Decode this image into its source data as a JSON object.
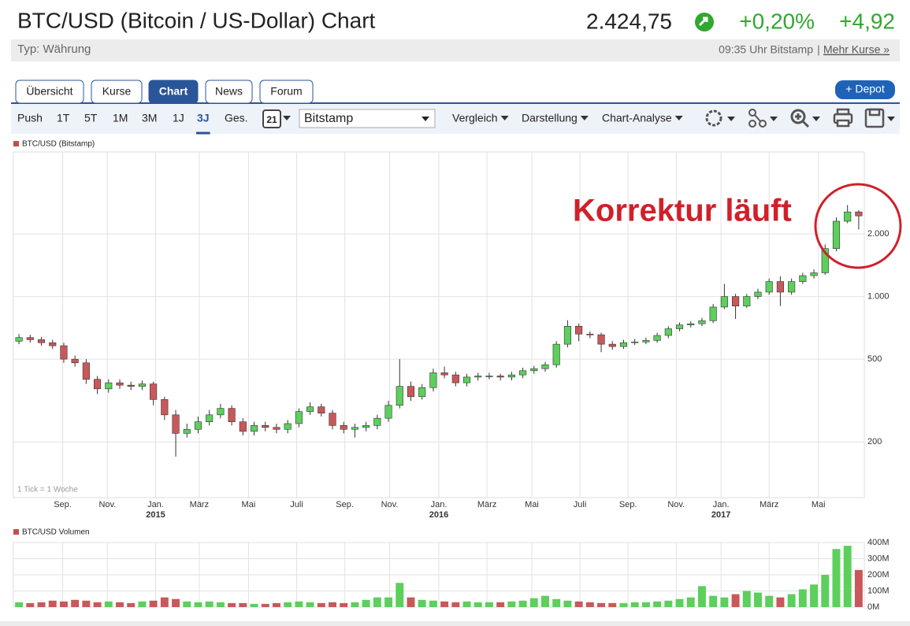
{
  "header": {
    "title": "BTC/USD (Bitcoin / US-Dollar) Chart",
    "price": "2.424,75",
    "change_pct": "+0,20%",
    "change_abs": "+4,92",
    "type": "Typ: Währung",
    "info": "09:35 Uhr Bitstamp",
    "separator": "|",
    "link": "Mehr Kurse »"
  },
  "tabs": [
    "Übersicht",
    "Kurse",
    "Chart",
    "News",
    "Forum"
  ],
  "active_tab": 2,
  "depot_button": "+ Depot",
  "toolbar": {
    "periods": [
      "Push",
      "1T",
      "5T",
      "1M",
      "3M",
      "1J",
      "3J",
      "Ges."
    ],
    "active_period": 6,
    "calendar_day": "21",
    "exchange": "Bitstamp",
    "menus": [
      "Vergleich",
      "Darstellung",
      "Chart-Analyse"
    ]
  },
  "chart_data": [
    {
      "type": "candlestick",
      "note": "1 Tick = 1 Woche",
      "annotation": "Korrektur läuft",
      "annotation_color": "#d0202a",
      "log_scale": true,
      "grid": true,
      "series": [
        {
          "name": "BTC/USD (Bitstamp)",
          "color": "#c0504d",
          "up_color": "#5ccf5c",
          "down_color": "#c9585a",
          "open": [
            610,
            635,
            620,
            600,
            580,
            500,
            480,
            400,
            360,
            385,
            375,
            370,
            380,
            320,
            270,
            220,
            230,
            250,
            270,
            290,
            250,
            225,
            240,
            235,
            230,
            245,
            280,
            295,
            275,
            240,
            230,
            235,
            240,
            260,
            300,
            370,
            330,
            365,
            430,
            420,
            385,
            410,
            415,
            415,
            410,
            420,
            440,
            450,
            470,
            590,
            720,
            660,
            655,
            590,
            575,
            600,
            605,
            615,
            650,
            700,
            730,
            740,
            765,
            890,
            1000,
            900,
            1000,
            1050,
            1180,
            1050,
            1180,
            1260,
            1300,
            1700,
            2300,
            2550
          ],
          "high": [
            660,
            655,
            640,
            620,
            600,
            520,
            500,
            415,
            400,
            400,
            390,
            395,
            390,
            330,
            285,
            245,
            265,
            285,
            305,
            300,
            260,
            250,
            250,
            245,
            255,
            290,
            310,
            305,
            285,
            250,
            245,
            250,
            270,
            315,
            500,
            390,
            380,
            450,
            460,
            435,
            425,
            430,
            430,
            425,
            435,
            455,
            465,
            485,
            610,
            770,
            740,
            680,
            670,
            610,
            620,
            625,
            635,
            670,
            720,
            750,
            760,
            790,
            920,
            1150,
            1030,
            1030,
            1090,
            1220,
            1250,
            1220,
            1300,
            1350,
            1780,
            2400,
            2750,
            2600
          ],
          "low": [
            590,
            600,
            580,
            560,
            480,
            460,
            380,
            340,
            345,
            360,
            355,
            355,
            300,
            255,
            170,
            210,
            220,
            240,
            260,
            240,
            215,
            215,
            225,
            220,
            220,
            235,
            270,
            265,
            230,
            220,
            210,
            225,
            230,
            250,
            290,
            315,
            320,
            350,
            405,
            370,
            370,
            395,
            400,
            395,
            395,
            405,
            425,
            435,
            455,
            570,
            610,
            630,
            540,
            555,
            560,
            585,
            590,
            600,
            630,
            680,
            710,
            720,
            745,
            870,
            780,
            880,
            970,
            1020,
            900,
            1020,
            1150,
            1220,
            1270,
            1650,
            2250,
            2100
          ],
          "close": [
            635,
            620,
            600,
            580,
            500,
            480,
            400,
            360,
            385,
            375,
            370,
            380,
            320,
            270,
            220,
            230,
            250,
            270,
            290,
            250,
            225,
            240,
            235,
            230,
            245,
            280,
            295,
            275,
            240,
            230,
            235,
            240,
            260,
            300,
            370,
            330,
            365,
            430,
            420,
            385,
            410,
            415,
            415,
            410,
            420,
            440,
            450,
            470,
            590,
            720,
            660,
            655,
            590,
            575,
            600,
            605,
            615,
            650,
            700,
            730,
            740,
            765,
            890,
            1000,
            900,
            1000,
            1050,
            1180,
            1050,
            1180,
            1260,
            1300,
            1700,
            2300,
            2550,
            2440
          ]
        }
      ],
      "xlim": [
        0,
        76
      ],
      "xticks": [
        {
          "value": 4.4,
          "label": "Sep."
        },
        {
          "value": 8.4,
          "label": "Nov."
        },
        {
          "value": 12.7,
          "label": "Jan."
        },
        {
          "value": 16.6,
          "label": "März"
        },
        {
          "value": 21,
          "label": "Mai"
        },
        {
          "value": 25.3,
          "label": "Juli"
        },
        {
          "value": 29.6,
          "label": "Sep."
        },
        {
          "value": 33.6,
          "label": "Nov."
        },
        {
          "value": 38,
          "label": "Jan."
        },
        {
          "value": 42.3,
          "label": "März"
        },
        {
          "value": 46.3,
          "label": "Mai"
        },
        {
          "value": 50.6,
          "label": "Juli"
        },
        {
          "value": 54.9,
          "label": "Sep."
        },
        {
          "value": 59.2,
          "label": "Nov."
        },
        {
          "value": 63.2,
          "label": "Jan."
        },
        {
          "value": 67.5,
          "label": "März"
        },
        {
          "value": 71.9,
          "label": "Mai"
        }
      ],
      "x_year_labels": [
        {
          "value": 12.7,
          "label": "2015"
        },
        {
          "value": 38,
          "label": "2016"
        },
        {
          "value": 63.2,
          "label": "2017"
        }
      ],
      "ylim": [
        108,
        4950
      ],
      "yticks": [
        200,
        500,
        {
          "value": 1000,
          "label": "1.000"
        },
        {
          "value": 2000,
          "label": "2.000"
        }
      ]
    },
    {
      "type": "bar",
      "grid": true,
      "series": [
        {
          "name": "BTC/USD Volumen",
          "color": "#c0504d",
          "up_color": "#5ccf5c",
          "down_color": "#c9585a",
          "values": [
            30000000.0,
            25000000.0,
            30000000.0,
            40000000.0,
            35000000.0,
            45000000.0,
            40000000.0,
            30000000.0,
            35000000.0,
            30000000.0,
            25000000.0,
            35000000.0,
            40000000.0,
            60000000.0,
            50000000.0,
            35000000.0,
            30000000.0,
            35000000.0,
            30000000.0,
            25000000.0,
            25000000.0,
            20000000.0,
            20000000.0,
            25000000.0,
            30000000.0,
            35000000.0,
            30000000.0,
            25000000.0,
            30000000.0,
            25000000.0,
            30000000.0,
            45000000.0,
            60000000.0,
            60000000.0,
            150000000.0,
            60000000.0,
            45000000.0,
            40000000.0,
            35000000.0,
            30000000.0,
            35000000.0,
            30000000.0,
            30000000.0,
            30000000.0,
            35000000.0,
            40000000.0,
            55000000.0,
            70000000.0,
            50000000.0,
            40000000.0,
            35000000.0,
            30000000.0,
            25000000.0,
            25000000.0,
            25000000.0,
            30000000.0,
            30000000.0,
            35000000.0,
            40000000.0,
            50000000.0,
            60000000.0,
            130000000.0,
            70000000.0,
            60000000.0,
            80000000.0,
            100000000.0,
            90000000.0,
            70000000.0,
            60000000.0,
            80000000.0,
            110000000.0,
            140000000.0,
            200000000.0,
            360000000.0,
            380000000.0,
            230000000.0
          ]
        }
      ],
      "xlim": [
        0,
        76
      ],
      "ylim": [
        0,
        400000000
      ],
      "yticks": [
        {
          "value": 0,
          "label": "0M"
        },
        {
          "value": 100000000,
          "label": "100M"
        },
        {
          "value": 200000000,
          "label": "200M"
        },
        {
          "value": 300000000,
          "label": "300M"
        },
        {
          "value": 400000000,
          "label": "400M"
        }
      ]
    }
  ]
}
